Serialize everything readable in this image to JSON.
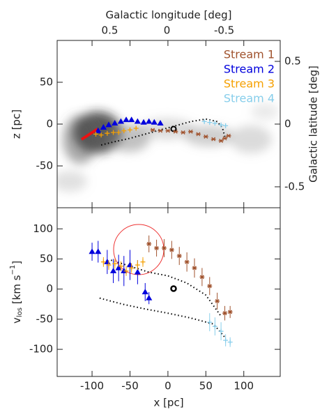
{
  "chart_data": [
    {
      "type": "scatter",
      "ylabel": "z [pc]",
      "x2label": "Galactic longitude [deg]",
      "y2label": "Galactic latitude [deg]",
      "xlim": [
        -146,
        148
      ],
      "xticks": [
        -100,
        -50,
        0,
        50,
        100
      ],
      "ylim": [
        -100,
        100
      ],
      "yticks": [
        -50,
        0,
        50
      ],
      "x2lim": [
        0.96,
        -0.99
      ],
      "x2ticks": [
        0.5,
        0,
        -0.5
      ],
      "y2lim": [
        -0.667,
        0.667
      ],
      "y2ticks": [
        -0.5,
        0,
        0.5
      ],
      "legend": "upper right",
      "series": [
        {
          "name": "Stream 1",
          "color": "#a0522d",
          "marker": "star",
          "x": [
            -20,
            -10,
            0,
            10,
            20,
            30,
            40,
            50,
            60,
            70,
            75,
            80
          ],
          "values": [
            -7,
            -8,
            -8,
            -9,
            -10,
            -9,
            -12,
            -15,
            -18,
            -20,
            -17,
            -14
          ]
        },
        {
          "name": "Stream 2",
          "color": "#0000dd",
          "marker": "triangle",
          "x": [
            -92,
            -85,
            -78,
            -70,
            -62,
            -55,
            -48,
            -40,
            -32,
            -25,
            -18,
            -10
          ],
          "values": [
            -8,
            -4,
            -1,
            1,
            3,
            5,
            5,
            3,
            2,
            3,
            2,
            1
          ]
        },
        {
          "name": "Stream 3",
          "color": "#f5a000",
          "marker": "plus",
          "x": [
            -95,
            -88,
            -80,
            -72,
            -65,
            -58,
            -50,
            -42
          ],
          "values": [
            -12,
            -13,
            -11,
            -10,
            -10,
            -8,
            -7,
            -5
          ]
        },
        {
          "name": "Stream 4",
          "color": "#87ceeb",
          "marker": "plus",
          "x": [
            48,
            55,
            62,
            70,
            76
          ],
          "values": [
            3,
            2,
            1,
            -1,
            -2
          ]
        }
      ],
      "model": {
        "x": [
          -88,
          -70,
          -50,
          -30,
          -10,
          10,
          30,
          50,
          65,
          72,
          75
        ],
        "values": [
          -25,
          -21,
          -17,
          -12,
          -7,
          -2,
          3,
          6,
          3,
          -5,
          -15
        ]
      }
    },
    {
      "type": "scatter",
      "xlabel": "x [pc]",
      "ylabel": [
        "v",
        "los",
        " [km s",
        "−1",
        "]"
      ],
      "xlim": [
        -146,
        148
      ],
      "xticks": [
        -100,
        -50,
        0,
        50,
        100
      ],
      "ylim": [
        -145,
        135
      ],
      "yticks": [
        -100,
        -50,
        0,
        50,
        100
      ],
      "series": [
        {
          "color": "#a0522d",
          "marker": "star",
          "x": [
            -25,
            -15,
            -5,
            5,
            15,
            25,
            35,
            45,
            55,
            65,
            75,
            82
          ],
          "values": [
            75,
            68,
            68,
            65,
            55,
            45,
            35,
            20,
            5,
            -20,
            -40,
            -38
          ],
          "errors": [
            14,
            14,
            15,
            15,
            15,
            16,
            16,
            15,
            15,
            14,
            12,
            10
          ]
        },
        {
          "color": "#0000dd",
          "marker": "triangle",
          "x": [
            -100,
            -92,
            -80,
            -72,
            -65,
            -58,
            -50,
            -40,
            -30,
            -25
          ],
          "values": [
            62,
            62,
            45,
            30,
            35,
            30,
            40,
            28,
            -5,
            -15
          ],
          "errors": [
            15,
            18,
            20,
            20,
            22,
            25,
            25,
            20,
            15,
            10
          ]
        },
        {
          "color": "#f5a000",
          "marker": "plus",
          "x": [
            -85,
            -78,
            -70,
            -62,
            -55,
            -48,
            -40,
            -33
          ],
          "values": [
            45,
            40,
            42,
            38,
            30,
            35,
            40,
            45
          ],
          "errors": [
            8,
            8,
            8,
            8,
            8,
            8,
            8,
            8
          ]
        },
        {
          "color": "#87ceeb",
          "marker": "plus",
          "x": [
            55,
            62,
            70,
            76,
            82
          ],
          "values": [
            -55,
            -62,
            -70,
            -85,
            -88
          ],
          "errors": [
            15,
            15,
            15,
            10,
            8
          ]
        }
      ],
      "model": {
        "x": [
          -75,
          -50,
          -25,
          0,
          25,
          50,
          70,
          null,
          -90,
          -60,
          -30,
          0,
          30,
          60,
          75
        ],
        "values": [
          48,
          38,
          28,
          22,
          10,
          -10,
          -45,
          null,
          -15,
          -25,
          -33,
          -40,
          -48,
          -58,
          -80
        ]
      }
    }
  ]
}
